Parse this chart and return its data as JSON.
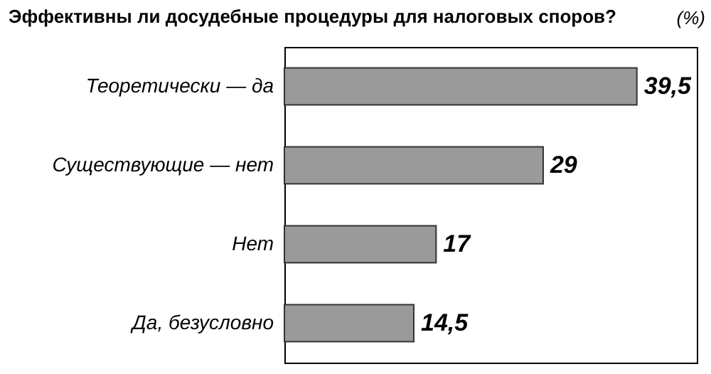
{
  "chart_data": {
    "type": "bar",
    "orientation": "horizontal",
    "title": "Эффективны ли досудебные процедуры для налоговых споров?",
    "annotations": [
      "(%)"
    ],
    "categories": [
      "Теоретически — да",
      "Существующие — нет",
      "Нет",
      "Да, безусловно"
    ],
    "values": [
      39.5,
      29,
      17,
      14.5
    ],
    "value_labels": [
      "39,5",
      "29",
      "17",
      "14,5"
    ],
    "color": "#9a9a9a",
    "grid": false
  }
}
